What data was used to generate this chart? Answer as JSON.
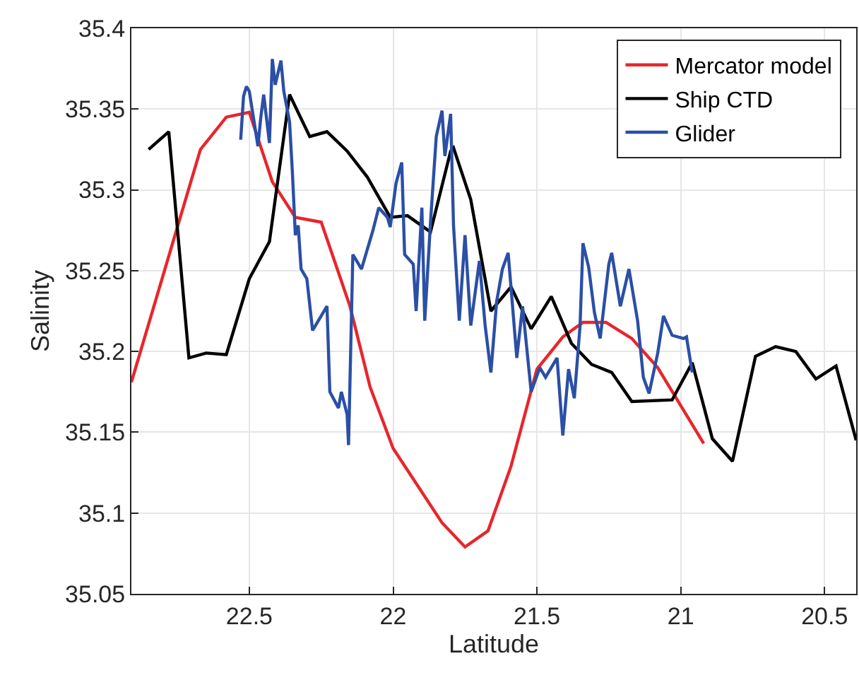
{
  "chart_data": {
    "type": "line",
    "xlabel": "Latitude",
    "ylabel": "Salinity",
    "xlim": [
      22.91,
      20.39
    ],
    "ylim": [
      35.05,
      35.4
    ],
    "xticks": [
      22.5,
      22,
      21.5,
      21,
      20.5
    ],
    "yticks": [
      35.05,
      35.1,
      35.15,
      35.2,
      35.25,
      35.3,
      35.35,
      35.4
    ],
    "grid": true,
    "legend": "top right",
    "line_style": "solid",
    "marker": "none",
    "series": [
      {
        "name": "Mercator model",
        "color": "#e8262b",
        "x": [
          22.91,
          22.67,
          22.58,
          22.5,
          22.42,
          22.34,
          22.25,
          22.15,
          22.08,
          22.0,
          21.83,
          21.75,
          21.67,
          21.59,
          21.5,
          21.41,
          21.34,
          21.26,
          21.17,
          21.08,
          20.92
        ],
        "values": [
          35.181,
          35.325,
          35.345,
          35.348,
          35.305,
          35.283,
          35.28,
          35.228,
          35.178,
          35.14,
          35.094,
          35.079,
          35.089,
          35.129,
          35.189,
          35.209,
          35.218,
          35.218,
          35.208,
          35.19,
          35.143
        ]
      },
      {
        "name": "Ship CTD",
        "color": "#000000",
        "x": [
          22.85,
          22.78,
          22.71,
          22.65,
          22.58,
          22.5,
          22.43,
          22.36,
          22.29,
          22.23,
          22.16,
          22.09,
          22.01,
          21.95,
          21.87,
          21.8,
          21.79,
          21.73,
          21.66,
          21.59,
          21.52,
          21.45,
          21.38,
          21.31,
          21.24,
          21.17,
          21.03,
          20.96,
          20.89,
          20.82,
          20.74,
          20.67,
          20.6,
          20.53,
          20.46,
          20.39
        ],
        "values": [
          35.325,
          35.336,
          35.196,
          35.199,
          35.198,
          35.245,
          35.268,
          35.359,
          35.333,
          35.336,
          35.324,
          35.308,
          35.283,
          35.284,
          35.274,
          35.324,
          35.326,
          35.294,
          35.225,
          35.24,
          35.214,
          35.234,
          35.205,
          35.192,
          35.187,
          35.169,
          35.17,
          35.193,
          35.146,
          35.132,
          35.197,
          35.203,
          35.2,
          35.183,
          35.191,
          35.145
        ]
      },
      {
        "name": "Glider",
        "color": "#2b4fa6",
        "x": [
          22.53,
          22.52,
          22.51,
          22.5,
          22.47,
          22.46,
          22.45,
          22.43,
          22.42,
          22.41,
          22.39,
          22.38,
          22.36,
          22.35,
          22.34,
          22.33,
          22.32,
          22.3,
          22.28,
          22.23,
          22.22,
          22.19,
          22.18,
          22.16,
          22.155,
          22.14,
          22.11,
          22.09,
          22.07,
          22.05,
          22.02,
          22.01,
          21.99,
          21.97,
          21.96,
          21.93,
          21.92,
          21.9,
          21.89,
          21.87,
          21.85,
          21.83,
          21.82,
          21.8,
          21.79,
          21.77,
          21.75,
          21.73,
          21.7,
          21.68,
          21.66,
          21.64,
          21.62,
          21.6,
          21.57,
          21.55,
          21.52,
          21.49,
          21.47,
          21.43,
          21.41,
          21.39,
          21.37,
          21.35,
          21.34,
          21.32,
          21.3,
          21.28,
          21.25,
          21.24,
          21.21,
          21.18,
          21.15,
          21.13,
          21.11,
          21.08,
          21.06,
          21.03,
          20.99,
          20.98,
          20.96
        ],
        "values": [
          35.331,
          35.358,
          35.364,
          35.361,
          35.327,
          35.345,
          35.359,
          35.329,
          35.381,
          35.365,
          35.38,
          35.361,
          35.342,
          35.31,
          35.272,
          35.278,
          35.251,
          35.245,
          35.213,
          35.228,
          35.175,
          35.165,
          35.175,
          35.161,
          35.142,
          35.26,
          35.251,
          35.263,
          35.275,
          35.289,
          35.283,
          35.277,
          35.304,
          35.317,
          35.26,
          35.254,
          35.225,
          35.289,
          35.219,
          35.28,
          35.333,
          35.349,
          35.321,
          35.347,
          35.278,
          35.219,
          35.272,
          35.216,
          35.256,
          35.216,
          35.187,
          35.231,
          35.251,
          35.261,
          35.196,
          35.228,
          35.175,
          35.19,
          35.184,
          35.196,
          35.148,
          35.189,
          35.171,
          35.216,
          35.267,
          35.252,
          35.224,
          35.208,
          35.254,
          35.261,
          35.228,
          35.251,
          35.219,
          35.184,
          35.174,
          35.199,
          35.222,
          35.21,
          35.208,
          35.209,
          35.187
        ]
      }
    ]
  }
}
